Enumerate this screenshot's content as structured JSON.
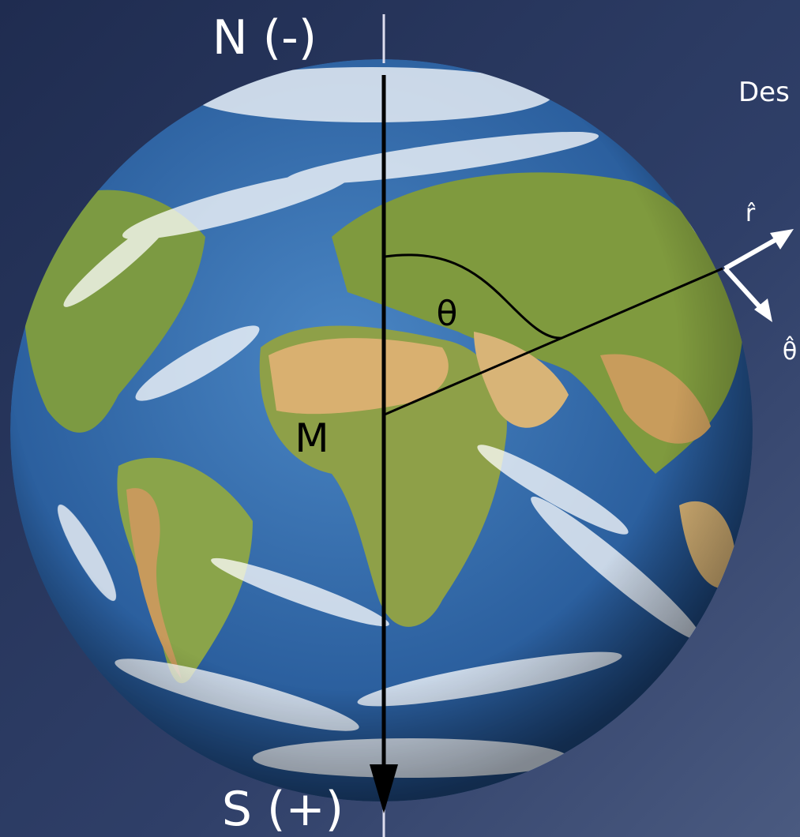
{
  "labels": {
    "north": "N (-)",
    "south": "S (+)",
    "angle": "θ",
    "moment": "M",
    "corner": "Des",
    "r_hat": "r̂",
    "theta_hat": "θ̂"
  }
}
